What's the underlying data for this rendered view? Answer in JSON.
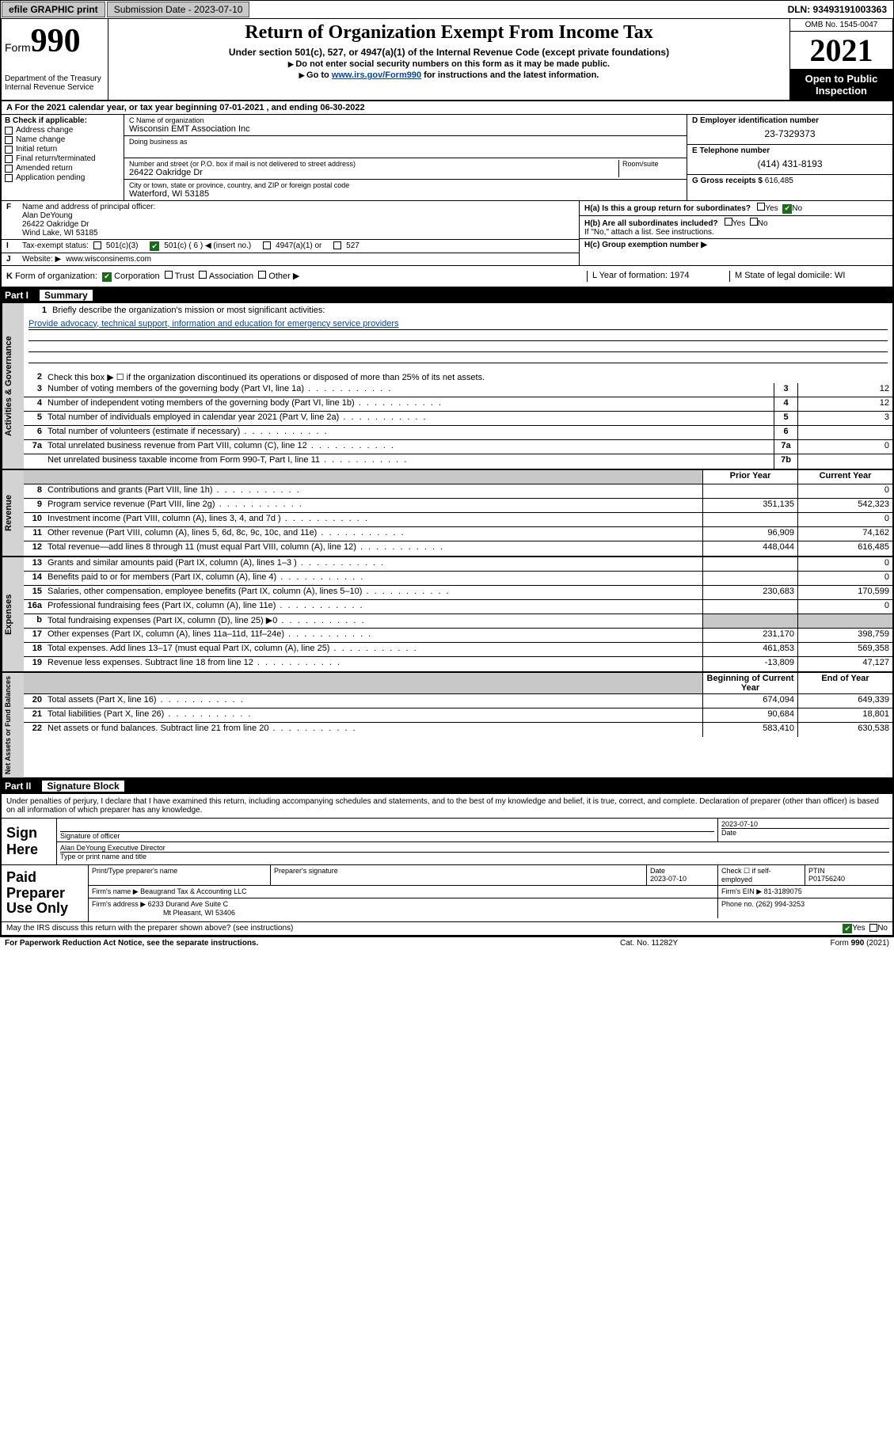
{
  "topbar": {
    "efile": "efile GRAPHIC print",
    "submission_label": "Submission Date - 2023-07-10",
    "dln": "DLN: 93493191003363"
  },
  "header": {
    "form_label": "Form",
    "form_number": "990",
    "dept": "Department of the Treasury\nInternal Revenue Service",
    "title": "Return of Organization Exempt From Income Tax",
    "subtitle1": "Under section 501(c), 527, or 4947(a)(1) of the Internal Revenue Code (except private foundations)",
    "subtitle2": "Do not enter social security numbers on this form as it may be made public.",
    "subtitle3_pre": "Go to ",
    "subtitle3_link": "www.irs.gov/Form990",
    "subtitle3_post": " for instructions and the latest information.",
    "omb": "OMB No. 1545-0047",
    "year": "2021",
    "public_inspection": "Open to Public Inspection"
  },
  "lineA": "For the 2021 calendar year, or tax year beginning 07-01-2021   , and ending 06-30-2022",
  "boxB": {
    "label": "B Check if applicable:",
    "items": [
      "Address change",
      "Name change",
      "Initial return",
      "Final return/terminated",
      "Amended return",
      "Application pending"
    ]
  },
  "boxC": {
    "name_label": "C Name of organization",
    "name": "Wisconsin EMT Association Inc",
    "dba_label": "Doing business as",
    "dba": "",
    "addr_label": "Number and street (or P.O. box if mail is not delivered to street address)",
    "room_label": "Room/suite",
    "addr": "26422 Oakridge Dr",
    "city_label": "City or town, state or province, country, and ZIP or foreign postal code",
    "city": "Waterford, WI  53185"
  },
  "boxD": {
    "label": "D Employer identification number",
    "val": "23-7329373"
  },
  "boxE": {
    "label": "E Telephone number",
    "val": "(414) 431-8193"
  },
  "boxG": {
    "label": "G Gross receipts $",
    "val": "616,485"
  },
  "boxF": {
    "ltr": "F",
    "label": "Name and address of principal officer:",
    "name": "Alan DeYoung",
    "addr1": "26422 Oakridge Dr",
    "addr2": "Wind Lake, WI  53185"
  },
  "boxH": {
    "a_label": "H(a)  Is this a group return for subordinates?",
    "a_yes": "Yes",
    "a_no": "No",
    "b_label": "H(b)  Are all subordinates included?",
    "b_yes": "Yes",
    "b_no": "No",
    "b_note": "If \"No,\" attach a list. See instructions.",
    "c_label": "H(c)  Group exemption number ▶"
  },
  "lineI": {
    "ltr": "I",
    "label": "Tax-exempt status:",
    "opts": [
      "501(c)(3)",
      "501(c) ( 6 ) ◀ (insert no.)",
      "4947(a)(1) or",
      "527"
    ],
    "checked_idx": 1
  },
  "lineJ": {
    "ltr": "J",
    "label": "Website: ▶",
    "val": "www.wisconsinems.com"
  },
  "lineK": {
    "ltr": "K",
    "label": "Form of organization:",
    "opts": [
      "Corporation",
      "Trust",
      "Association",
      "Other ▶"
    ],
    "checked_idx": 0
  },
  "lineL": {
    "label": "L Year of formation:",
    "val": "1974"
  },
  "lineM": {
    "label": "M State of legal domicile:",
    "val": "WI"
  },
  "part1": {
    "header": "Part I",
    "title": "Summary",
    "mission_label": "Briefly describe the organization's mission or most significant activities:",
    "mission": "Provide advocacy, technical support, information and education for emergency service providers",
    "line2": "Check this box ▶ ☐  if the organization discontinued its operations or disposed of more than 25% of its net assets.",
    "sections": [
      {
        "vtab": "Activities & Governance",
        "lines": [
          {
            "n": "3",
            "t": "Number of voting members of the governing body (Part VI, line 1a)",
            "nb": "3",
            "v2": "12"
          },
          {
            "n": "4",
            "t": "Number of independent voting members of the governing body (Part VI, line 1b)",
            "nb": "4",
            "v2": "12"
          },
          {
            "n": "5",
            "t": "Total number of individuals employed in calendar year 2021 (Part V, line 2a)",
            "nb": "5",
            "v2": "3"
          },
          {
            "n": "6",
            "t": "Total number of volunteers (estimate if necessary)",
            "nb": "6",
            "v2": ""
          },
          {
            "n": "7a",
            "t": "Total unrelated business revenue from Part VIII, column (C), line 12",
            "nb": "7a",
            "v2": "0"
          },
          {
            "n": "",
            "t": "Net unrelated business taxable income from Form 990-T, Part I, line 11",
            "nb": "7b",
            "v2": ""
          }
        ]
      },
      {
        "vtab": "Revenue",
        "hdr": {
          "c1": "Prior Year",
          "c2": "Current Year"
        },
        "lines": [
          {
            "n": "8",
            "t": "Contributions and grants (Part VIII, line 1h)",
            "v1": "",
            "v2": "0"
          },
          {
            "n": "9",
            "t": "Program service revenue (Part VIII, line 2g)",
            "v1": "351,135",
            "v2": "542,323"
          },
          {
            "n": "10",
            "t": "Investment income (Part VIII, column (A), lines 3, 4, and 7d )",
            "v1": "",
            "v2": "0"
          },
          {
            "n": "11",
            "t": "Other revenue (Part VIII, column (A), lines 5, 6d, 8c, 9c, 10c, and 11e)",
            "v1": "96,909",
            "v2": "74,162"
          },
          {
            "n": "12",
            "t": "Total revenue—add lines 8 through 11 (must equal Part VIII, column (A), line 12)",
            "v1": "448,044",
            "v2": "616,485"
          }
        ]
      },
      {
        "vtab": "Expenses",
        "lines": [
          {
            "n": "13",
            "t": "Grants and similar amounts paid (Part IX, column (A), lines 1–3 )",
            "v1": "",
            "v2": "0"
          },
          {
            "n": "14",
            "t": "Benefits paid to or for members (Part IX, column (A), line 4)",
            "v1": "",
            "v2": "0"
          },
          {
            "n": "15",
            "t": "Salaries, other compensation, employee benefits (Part IX, column (A), lines 5–10)",
            "v1": "230,683",
            "v2": "170,599"
          },
          {
            "n": "16a",
            "t": "Professional fundraising fees (Part IX, column (A), line 11e)",
            "v1": "",
            "v2": "0"
          },
          {
            "n": "b",
            "t": "Total fundraising expenses (Part IX, column (D), line 25) ▶0",
            "v1": "GREY",
            "v2": "GREY"
          },
          {
            "n": "17",
            "t": "Other expenses (Part IX, column (A), lines 11a–11d, 11f–24e)",
            "v1": "231,170",
            "v2": "398,759"
          },
          {
            "n": "18",
            "t": "Total expenses. Add lines 13–17 (must equal Part IX, column (A), line 25)",
            "v1": "461,853",
            "v2": "569,358"
          },
          {
            "n": "19",
            "t": "Revenue less expenses. Subtract line 18 from line 12",
            "v1": "-13,809",
            "v2": "47,127"
          }
        ]
      },
      {
        "vtab": "Net Assets or Fund Balances",
        "hdr": {
          "c1": "Beginning of Current Year",
          "c2": "End of Year"
        },
        "lines": [
          {
            "n": "20",
            "t": "Total assets (Part X, line 16)",
            "v1": "674,094",
            "v2": "649,339"
          },
          {
            "n": "21",
            "t": "Total liabilities (Part X, line 26)",
            "v1": "90,684",
            "v2": "18,801"
          },
          {
            "n": "22",
            "t": "Net assets or fund balances. Subtract line 21 from line 20",
            "v1": "583,410",
            "v2": "630,538"
          }
        ]
      }
    ]
  },
  "part2": {
    "header": "Part II",
    "title": "Signature Block",
    "intro": "Under penalties of perjury, I declare that I have examined this return, including accompanying schedules and statements, and to the best of my knowledge and belief, it is true, correct, and complete. Declaration of preparer (other than officer) is based on all information of which preparer has any knowledge.",
    "sign_here": "Sign Here",
    "sig_officer_label": "Signature of officer",
    "sig_date": "2023-07-10",
    "date_label": "Date",
    "officer_name": "Alan DeYoung Executive Director",
    "officer_name_label": "Type or print name and title",
    "paid_prep": "Paid Preparer Use Only",
    "prep_name_label": "Print/Type preparer's name",
    "prep_sig_label": "Preparer's signature",
    "prep_date_label": "Date",
    "prep_date": "2023-07-10",
    "self_emp_label": "Check ☐ if self-employed",
    "ptin_label": "PTIN",
    "ptin": "P01756240",
    "firm_name_label": "Firm's name    ▶",
    "firm_name": "Beaugrand Tax & Accounting LLC",
    "firm_ein_label": "Firm's EIN ▶",
    "firm_ein": "81-3189075",
    "firm_addr_label": "Firm's address ▶",
    "firm_addr1": "6233 Durand Ave Suite C",
    "firm_addr2": "Mt Pleasant, WI  53406",
    "firm_phone_label": "Phone no.",
    "firm_phone": "(262) 994-3253",
    "discuss": "May the IRS discuss this return with the preparer shown above? (see instructions)",
    "discuss_yes": "Yes",
    "discuss_no": "No"
  },
  "footer": {
    "left": "For Paperwork Reduction Act Notice, see the separate instructions.",
    "mid": "Cat. No. 11282Y",
    "right": "Form 990 (2021)"
  },
  "colors": {
    "link": "#0645ad",
    "grey": "#c8c8c8",
    "vtab": "#d3d3d3",
    "check_green": "#1a6b1a"
  }
}
